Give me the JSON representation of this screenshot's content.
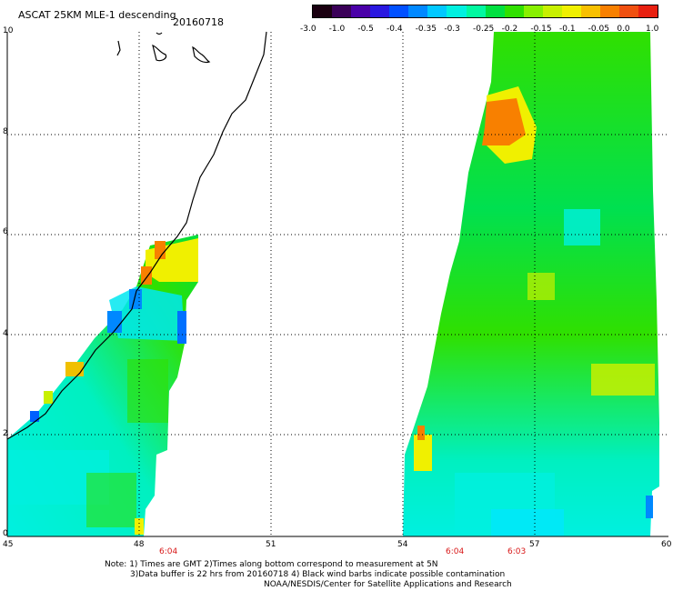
{
  "title": "ASCAT 25KM MLE-1 descending",
  "date": "20160718",
  "colorbar": {
    "labels": [
      "-3.0",
      "-1.0",
      "-0.5",
      "-0.4",
      "-0.35",
      "-0.3",
      "-0.25",
      "-0.2",
      "-0.15",
      "-0.1",
      "-0.05",
      "0.0",
      "1.0"
    ],
    "colors": [
      "#1a0010",
      "#3a0058",
      "#4a00a8",
      "#2a18e0",
      "#0050ff",
      "#0088ff",
      "#00c8ff",
      "#00f0e0",
      "#00f8a0",
      "#00e040",
      "#30e000",
      "#88f000",
      "#c8f000",
      "#f0f000",
      "#f8c000",
      "#f88000",
      "#f05010",
      "#e82010"
    ]
  },
  "axes": {
    "x_ticks": [
      "45",
      "48",
      "51",
      "54",
      "57",
      "60"
    ],
    "y_ticks": [
      "0",
      "2",
      "4",
      "6",
      "8",
      "10"
    ]
  },
  "pass_times": [
    "6:04",
    "6:04",
    "6:03"
  ],
  "notes": [
    "Note: 1) Times are GMT 2)Times along bottom correspond to measurement at 5N",
    "3)Data buffer is 22 hrs from 20160718 4) Black wind barbs indicate possible contamination",
    "NOAA/NESDIS/Center for Satellite Applications and Research"
  ]
}
